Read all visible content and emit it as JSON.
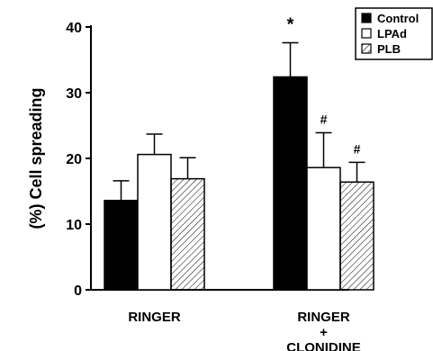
{
  "chart_data": {
    "type": "bar",
    "ylabel": "(%) Cell spreading",
    "ylim": [
      0,
      40
    ],
    "yticks": [
      "0",
      "10",
      "20",
      "30",
      "40"
    ],
    "categories": [
      {
        "lines": [
          "RINGER"
        ]
      },
      {
        "lines": [
          "RINGER",
          "+",
          "CLONIDINE"
        ]
      }
    ],
    "series": [
      {
        "name": "Control",
        "fill": "solid",
        "color": "#000000",
        "values": [
          13.6,
          32.4
        ],
        "errors": [
          3.0,
          5.2
        ],
        "annotations": [
          "",
          "*"
        ]
      },
      {
        "name": "LPAd",
        "fill": "open",
        "color": "#ffffff",
        "values": [
          20.6,
          18.6
        ],
        "errors": [
          3.1,
          5.3
        ],
        "annotations": [
          "",
          "#"
        ]
      },
      {
        "name": "PLB",
        "fill": "hatched",
        "color": "#ffffff",
        "values": [
          16.9,
          16.4
        ],
        "errors": [
          3.2,
          3.0
        ],
        "annotations": [
          "",
          "#"
        ]
      }
    ],
    "legend_position": "top-right",
    "grid": false
  }
}
